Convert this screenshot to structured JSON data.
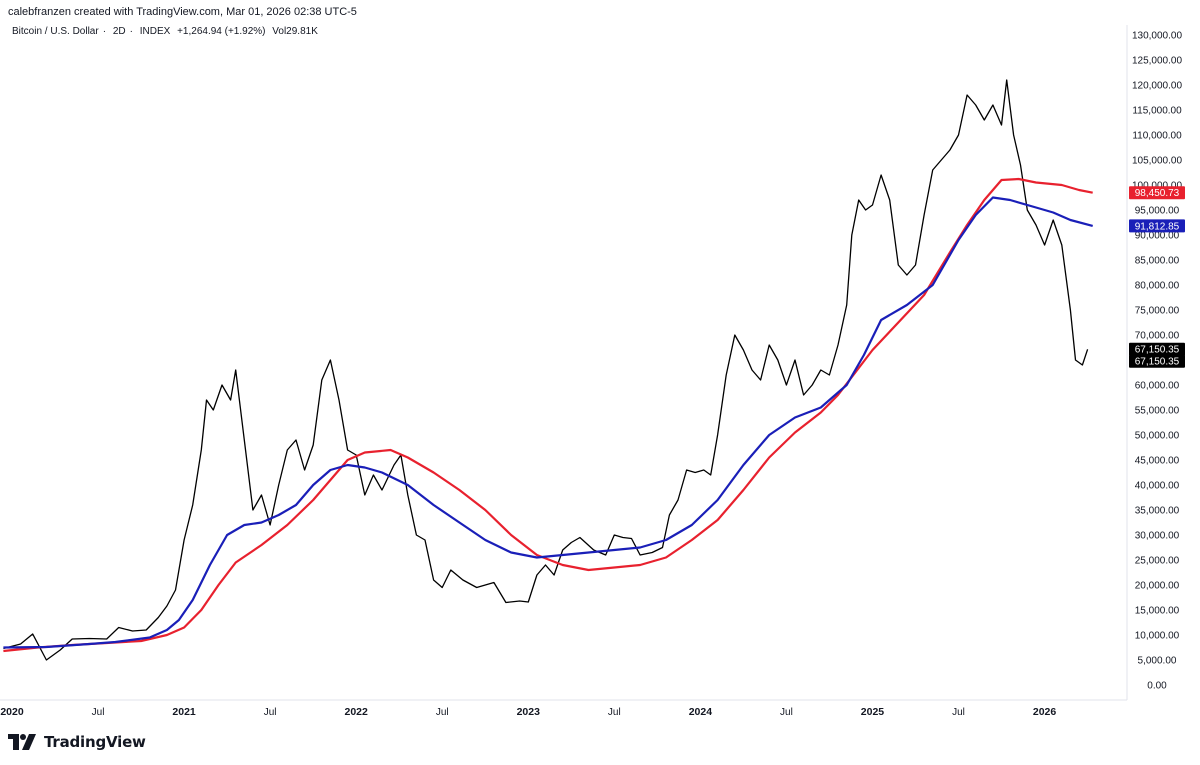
{
  "header": {
    "attribution": "calebfranzen created with TradingView.com, Mar 01, 2026 02:38 UTC-5"
  },
  "symbol_bar": {
    "name": "Bitcoin / U.S. Dollar",
    "interval": "2D",
    "exchange": "INDEX",
    "change": "+1,264.94 (+1.92%)",
    "volume": "Vol29.81K"
  },
  "brand": {
    "name": "TradingView"
  },
  "colors": {
    "price": "#000000",
    "ma_blue": "#1a1fb8",
    "ma_red": "#e8212e",
    "tag_black": "#000000",
    "tag_blue": "#1a1fb8",
    "tag_red": "#e8212e",
    "axis_text": "#131722"
  },
  "chart_data": {
    "type": "line",
    "x_range": [
      2020.0,
      2026.45
    ],
    "ylim": [
      0,
      130000
    ],
    "y_ticks": [
      "130,000.00",
      "125,000.00",
      "120,000.00",
      "115,000.00",
      "110,000.00",
      "105,000.00",
      "100,000.00",
      "95,000.00",
      "90,000.00",
      "85,000.00",
      "80,000.00",
      "75,000.00",
      "70,000.00",
      "65,000.00",
      "60,000.00",
      "55,000.00",
      "50,000.00",
      "45,000.00",
      "40,000.00",
      "35,000.00",
      "30,000.00",
      "25,000.00",
      "20,000.00",
      "15,000.00",
      "10,000.00",
      "5,000.00",
      "0.00"
    ],
    "x_ticks": [
      {
        "label": "2020",
        "x": 2020.0,
        "bold": true
      },
      {
        "label": "Jul",
        "x": 2020.5,
        "bold": false
      },
      {
        "label": "2021",
        "x": 2021.0,
        "bold": true
      },
      {
        "label": "Jul",
        "x": 2021.5,
        "bold": false
      },
      {
        "label": "2022",
        "x": 2022.0,
        "bold": true
      },
      {
        "label": "Jul",
        "x": 2022.5,
        "bold": false
      },
      {
        "label": "2023",
        "x": 2023.0,
        "bold": true
      },
      {
        "label": "Jul",
        "x": 2023.5,
        "bold": false
      },
      {
        "label": "2024",
        "x": 2024.0,
        "bold": true
      },
      {
        "label": "Jul",
        "x": 2024.5,
        "bold": false
      },
      {
        "label": "2025",
        "x": 2025.0,
        "bold": true
      },
      {
        "label": "Jul",
        "x": 2025.5,
        "bold": false
      },
      {
        "label": "2026",
        "x": 2026.0,
        "bold": true
      }
    ],
    "series": [
      {
        "style": "price",
        "points": [
          [
            2019.95,
            7300
          ],
          [
            2020.05,
            8200
          ],
          [
            2020.12,
            10200
          ],
          [
            2020.2,
            5000
          ],
          [
            2020.28,
            7000
          ],
          [
            2020.35,
            9200
          ],
          [
            2020.45,
            9300
          ],
          [
            2020.55,
            9200
          ],
          [
            2020.62,
            11500
          ],
          [
            2020.7,
            10800
          ],
          [
            2020.78,
            11000
          ],
          [
            2020.85,
            13500
          ],
          [
            2020.9,
            15800
          ],
          [
            2020.95,
            19000
          ],
          [
            2021.0,
            29000
          ],
          [
            2021.05,
            36000
          ],
          [
            2021.1,
            47000
          ],
          [
            2021.13,
            57000
          ],
          [
            2021.17,
            55000
          ],
          [
            2021.22,
            60000
          ],
          [
            2021.27,
            57000
          ],
          [
            2021.3,
            63000
          ],
          [
            2021.35,
            49000
          ],
          [
            2021.4,
            35000
          ],
          [
            2021.45,
            38000
          ],
          [
            2021.5,
            32000
          ],
          [
            2021.55,
            40000
          ],
          [
            2021.6,
            47000
          ],
          [
            2021.65,
            49000
          ],
          [
            2021.7,
            43000
          ],
          [
            2021.75,
            48000
          ],
          [
            2021.8,
            61000
          ],
          [
            2021.85,
            65000
          ],
          [
            2021.9,
            57000
          ],
          [
            2021.95,
            47000
          ],
          [
            2022.0,
            46000
          ],
          [
            2022.05,
            38000
          ],
          [
            2022.1,
            42000
          ],
          [
            2022.15,
            39000
          ],
          [
            2022.22,
            44000
          ],
          [
            2022.26,
            46000
          ],
          [
            2022.3,
            38000
          ],
          [
            2022.35,
            30000
          ],
          [
            2022.4,
            29000
          ],
          [
            2022.45,
            21000
          ],
          [
            2022.5,
            19500
          ],
          [
            2022.55,
            23000
          ],
          [
            2022.62,
            21000
          ],
          [
            2022.7,
            19500
          ],
          [
            2022.75,
            20000
          ],
          [
            2022.8,
            20500
          ],
          [
            2022.87,
            16500
          ],
          [
            2022.95,
            16800
          ],
          [
            2023.0,
            16600
          ],
          [
            2023.05,
            22000
          ],
          [
            2023.1,
            24000
          ],
          [
            2023.15,
            22000
          ],
          [
            2023.2,
            27000
          ],
          [
            2023.25,
            28500
          ],
          [
            2023.3,
            29500
          ],
          [
            2023.38,
            27000
          ],
          [
            2023.45,
            26000
          ],
          [
            2023.5,
            30000
          ],
          [
            2023.55,
            29500
          ],
          [
            2023.6,
            29300
          ],
          [
            2023.65,
            26000
          ],
          [
            2023.72,
            26500
          ],
          [
            2023.78,
            27500
          ],
          [
            2023.82,
            34000
          ],
          [
            2023.87,
            37000
          ],
          [
            2023.92,
            43000
          ],
          [
            2023.97,
            42500
          ],
          [
            2024.02,
            43000
          ],
          [
            2024.06,
            42000
          ],
          [
            2024.1,
            50000
          ],
          [
            2024.15,
            62000
          ],
          [
            2024.2,
            70000
          ],
          [
            2024.25,
            67000
          ],
          [
            2024.3,
            63000
          ],
          [
            2024.35,
            61000
          ],
          [
            2024.4,
            68000
          ],
          [
            2024.45,
            65000
          ],
          [
            2024.5,
            60000
          ],
          [
            2024.55,
            65000
          ],
          [
            2024.6,
            58000
          ],
          [
            2024.65,
            60000
          ],
          [
            2024.7,
            63000
          ],
          [
            2024.75,
            62000
          ],
          [
            2024.8,
            68000
          ],
          [
            2024.85,
            76000
          ],
          [
            2024.88,
            90000
          ],
          [
            2024.92,
            97000
          ],
          [
            2024.96,
            95000
          ],
          [
            2025.0,
            96000
          ],
          [
            2025.05,
            102000
          ],
          [
            2025.1,
            97000
          ],
          [
            2025.15,
            84000
          ],
          [
            2025.2,
            82000
          ],
          [
            2025.25,
            84000
          ],
          [
            2025.3,
            94000
          ],
          [
            2025.35,
            103000
          ],
          [
            2025.4,
            105000
          ],
          [
            2025.45,
            107000
          ],
          [
            2025.5,
            110000
          ],
          [
            2025.55,
            118000
          ],
          [
            2025.6,
            116000
          ],
          [
            2025.65,
            113000
          ],
          [
            2025.7,
            116000
          ],
          [
            2025.75,
            112000
          ],
          [
            2025.78,
            121000
          ],
          [
            2025.82,
            110000
          ],
          [
            2025.86,
            104000
          ],
          [
            2025.9,
            95000
          ],
          [
            2025.95,
            92000
          ],
          [
            2026.0,
            88000
          ],
          [
            2026.05,
            93000
          ],
          [
            2026.1,
            88000
          ],
          [
            2026.15,
            75000
          ],
          [
            2026.18,
            65000
          ],
          [
            2026.22,
            64000
          ],
          [
            2026.25,
            67150
          ]
        ]
      },
      {
        "style": "ma_blue",
        "points": [
          [
            2019.95,
            7500
          ],
          [
            2020.2,
            7600
          ],
          [
            2020.45,
            8200
          ],
          [
            2020.6,
            8600
          ],
          [
            2020.8,
            9500
          ],
          [
            2020.9,
            11000
          ],
          [
            2020.97,
            13000
          ],
          [
            2021.05,
            17000
          ],
          [
            2021.15,
            24000
          ],
          [
            2021.25,
            30000
          ],
          [
            2021.35,
            32000
          ],
          [
            2021.45,
            32500
          ],
          [
            2021.55,
            34000
          ],
          [
            2021.65,
            36000
          ],
          [
            2021.75,
            40000
          ],
          [
            2021.85,
            43000
          ],
          [
            2021.95,
            44000
          ],
          [
            2022.05,
            43500
          ],
          [
            2022.15,
            42500
          ],
          [
            2022.3,
            40000
          ],
          [
            2022.45,
            36000
          ],
          [
            2022.6,
            32500
          ],
          [
            2022.75,
            29000
          ],
          [
            2022.9,
            26500
          ],
          [
            2023.05,
            25500
          ],
          [
            2023.2,
            26000
          ],
          [
            2023.35,
            26500
          ],
          [
            2023.5,
            27000
          ],
          [
            2023.65,
            27500
          ],
          [
            2023.8,
            29000
          ],
          [
            2023.95,
            32000
          ],
          [
            2024.1,
            37000
          ],
          [
            2024.25,
            44000
          ],
          [
            2024.4,
            50000
          ],
          [
            2024.55,
            53500
          ],
          [
            2024.7,
            55500
          ],
          [
            2024.85,
            60000
          ],
          [
            2024.95,
            66000
          ],
          [
            2025.05,
            73000
          ],
          [
            2025.2,
            76000
          ],
          [
            2025.35,
            80000
          ],
          [
            2025.5,
            89000
          ],
          [
            2025.6,
            94000
          ],
          [
            2025.7,
            97500
          ],
          [
            2025.8,
            97000
          ],
          [
            2025.95,
            95500
          ],
          [
            2026.05,
            94500
          ],
          [
            2026.15,
            93000
          ],
          [
            2026.28,
            91813
          ]
        ]
      },
      {
        "style": "ma_red",
        "points": [
          [
            2019.95,
            6800
          ],
          [
            2020.15,
            7500
          ],
          [
            2020.35,
            8000
          ],
          [
            2020.55,
            8400
          ],
          [
            2020.75,
            8800
          ],
          [
            2020.9,
            10000
          ],
          [
            2021.0,
            11500
          ],
          [
            2021.1,
            15000
          ],
          [
            2021.2,
            20000
          ],
          [
            2021.3,
            24500
          ],
          [
            2021.45,
            28000
          ],
          [
            2021.6,
            32000
          ],
          [
            2021.75,
            37000
          ],
          [
            2021.85,
            41000
          ],
          [
            2021.95,
            45000
          ],
          [
            2022.05,
            46500
          ],
          [
            2022.2,
            47000
          ],
          [
            2022.3,
            45500
          ],
          [
            2022.45,
            42500
          ],
          [
            2022.6,
            39000
          ],
          [
            2022.75,
            35000
          ],
          [
            2022.9,
            30000
          ],
          [
            2023.05,
            26000
          ],
          [
            2023.2,
            24000
          ],
          [
            2023.35,
            23000
          ],
          [
            2023.5,
            23500
          ],
          [
            2023.65,
            24000
          ],
          [
            2023.8,
            25500
          ],
          [
            2023.95,
            29000
          ],
          [
            2024.1,
            33000
          ],
          [
            2024.25,
            39000
          ],
          [
            2024.4,
            45500
          ],
          [
            2024.55,
            50500
          ],
          [
            2024.7,
            54500
          ],
          [
            2024.8,
            58000
          ],
          [
            2024.9,
            62500
          ],
          [
            2025.0,
            67000
          ],
          [
            2025.15,
            72500
          ],
          [
            2025.3,
            78000
          ],
          [
            2025.45,
            86500
          ],
          [
            2025.55,
            92000
          ],
          [
            2025.65,
            97000
          ],
          [
            2025.75,
            101000
          ],
          [
            2025.85,
            101200
          ],
          [
            2025.95,
            100500
          ],
          [
            2026.1,
            100000
          ],
          [
            2026.2,
            99000
          ],
          [
            2026.28,
            98451
          ]
        ]
      }
    ],
    "last_values": [
      {
        "label": "98,450.73",
        "value": 98450.73,
        "style": "tag_red"
      },
      {
        "label": "91,812.85",
        "value": 91812.85,
        "style": "tag_blue"
      },
      {
        "label": "67,150.35",
        "value": 67150.35,
        "style": "tag_black"
      },
      {
        "label": "67,150.35",
        "value": 67150.35,
        "style": "tag_black"
      }
    ]
  }
}
